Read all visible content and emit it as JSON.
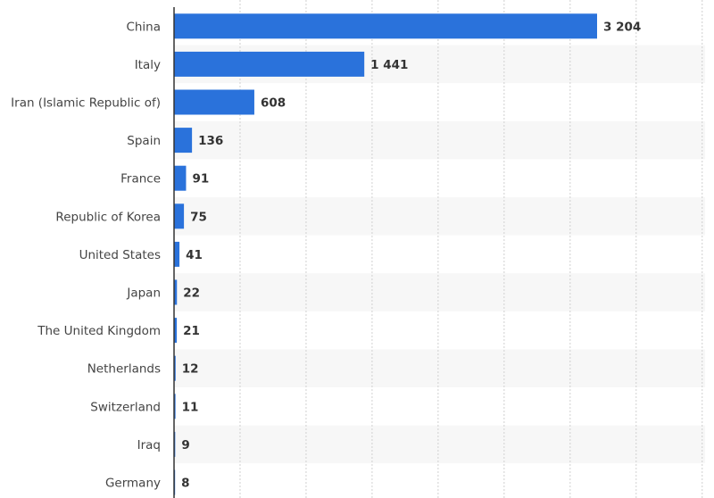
{
  "chart_data": {
    "type": "bar",
    "orientation": "horizontal",
    "categories": [
      "China",
      "Italy",
      "Iran (Islamic Republic of)",
      "Spain",
      "France",
      "Republic of Korea",
      "United States",
      "Japan",
      "The United Kingdom",
      "Netherlands",
      "Switzerland",
      "Iraq",
      "Germany"
    ],
    "values": [
      3204,
      1441,
      608,
      136,
      91,
      75,
      41,
      22,
      21,
      12,
      11,
      9,
      8
    ],
    "value_labels": [
      "3 204",
      "1 441",
      "608",
      "136",
      "91",
      "75",
      "41",
      "22",
      "21",
      "12",
      "11",
      "9",
      "8"
    ],
    "title": "",
    "xlabel": "",
    "ylabel": "",
    "xlim": [
      0,
      4000
    ],
    "grid": "vertical-dotted",
    "legend": "none",
    "bar_color": "#2a72db",
    "stripe_color": "#f7f7f7",
    "grid_color": "#d0d0d0",
    "axis_color": "#333333"
  }
}
